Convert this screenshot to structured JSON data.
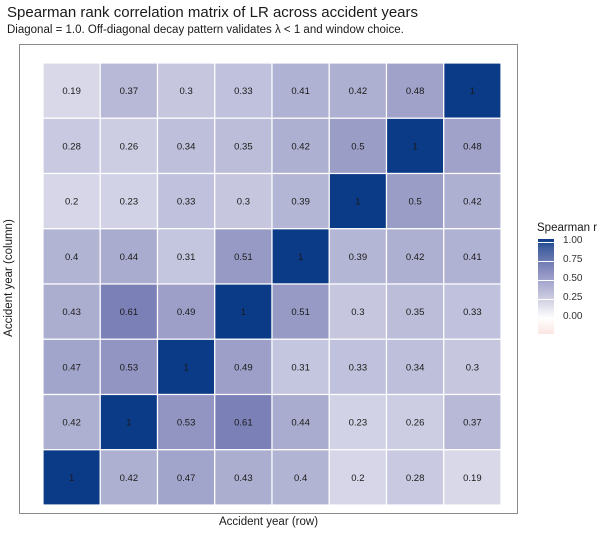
{
  "title": "Spearman rank correlation matrix of LR across accident years",
  "subtitle": "Diagonal = 1.0. Off-diagonal decay pattern validates λ < 1 and window choice.",
  "xlabel": "Accident year (row)",
  "ylabel": "Accident year (column)",
  "legend": {
    "title": "Spearman r",
    "labels": [
      "1.00",
      "0.75",
      "0.50",
      "0.25",
      "0.00"
    ]
  },
  "chart_data": {
    "type": "heatmap",
    "title": "Spearman rank correlation matrix of LR across accident years",
    "subtitle": "Diagonal = 1.0. Off-diagonal decay pattern validates λ < 1 and window choice.",
    "xlabel": "Accident year (row)",
    "ylabel": "Accident year (column)",
    "color_scale": {
      "low": "#fbe5e2",
      "mid": "#ffffff",
      "high": "#0b3a86",
      "range": [
        0,
        1
      ]
    },
    "legend_placement": "right",
    "grid": false,
    "rows_top_to_bottom": [
      [
        0.19,
        0.37,
        0.3,
        0.33,
        0.41,
        0.42,
        0.48,
        1
      ],
      [
        0.28,
        0.26,
        0.34,
        0.35,
        0.42,
        0.5,
        1,
        0.48
      ],
      [
        0.2,
        0.23,
        0.33,
        0.3,
        0.39,
        1,
        0.5,
        0.42
      ],
      [
        0.4,
        0.44,
        0.31,
        0.51,
        1,
        0.39,
        0.42,
        0.41
      ],
      [
        0.43,
        0.61,
        0.49,
        1,
        0.51,
        0.3,
        0.35,
        0.33
      ],
      [
        0.47,
        0.53,
        1,
        0.49,
        0.31,
        0.33,
        0.34,
        0.3
      ],
      [
        0.42,
        1,
        0.53,
        0.61,
        0.44,
        0.23,
        0.26,
        0.37
      ],
      [
        1,
        0.42,
        0.47,
        0.43,
        0.4,
        0.2,
        0.28,
        0.19
      ]
    ]
  }
}
